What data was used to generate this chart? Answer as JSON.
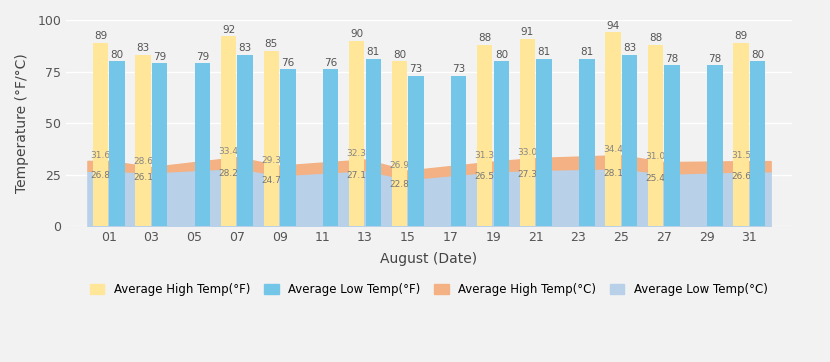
{
  "dates": [
    "01",
    "03",
    "05",
    "07",
    "09",
    "11",
    "13",
    "15",
    "17",
    "19",
    "21",
    "23",
    "25",
    "27",
    "29",
    "31"
  ],
  "high_F_data": {
    "01": 89,
    "03": 83,
    "07": 92,
    "09": 85,
    "13": 90,
    "15": 80,
    "19": 88,
    "21": 91,
    "25": 94,
    "27": 88,
    "31": 89
  },
  "low_F_data": {
    "01": 80,
    "03": 79,
    "05": 79,
    "07": 83,
    "09": 76,
    "11": 76,
    "13": 81,
    "15": 73,
    "17": 73,
    "19": 80,
    "21": 81,
    "23": 81,
    "25": 83,
    "27": 78,
    "29": 78,
    "31": 80
  },
  "high_C_data": {
    "01": 31.6,
    "03": 28.6,
    "07": 33.4,
    "09": 29.3,
    "13": 32.3,
    "15": 26.9,
    "19": 31.3,
    "21": 33.0,
    "25": 34.4,
    "27": 31.0,
    "31": 31.5
  },
  "low_C_data": {
    "01": 26.8,
    "03": 26.1,
    "07": 28.2,
    "09": 24.7,
    "13": 27.1,
    "15": 22.8,
    "19": 26.5,
    "21": 27.3,
    "25": 28.1,
    "27": 25.4,
    "31": 26.6
  },
  "color_high_F": "#FFE699",
  "color_low_F": "#74C6E8",
  "color_high_C": "#F4B183",
  "color_low_C": "#B8D0E8",
  "xlabel": "August (Date)",
  "ylabel": "Temperature (°F/°C)",
  "ylim": [
    0,
    100
  ],
  "yticks": [
    0,
    25,
    50,
    75,
    100
  ],
  "legend_labels": [
    "Average High Temp(°F)",
    "Average Low Temp(°F)",
    "Average High Temp(°C)",
    "Average Low Temp(°C)"
  ],
  "bg_color": "#f2f2f2"
}
